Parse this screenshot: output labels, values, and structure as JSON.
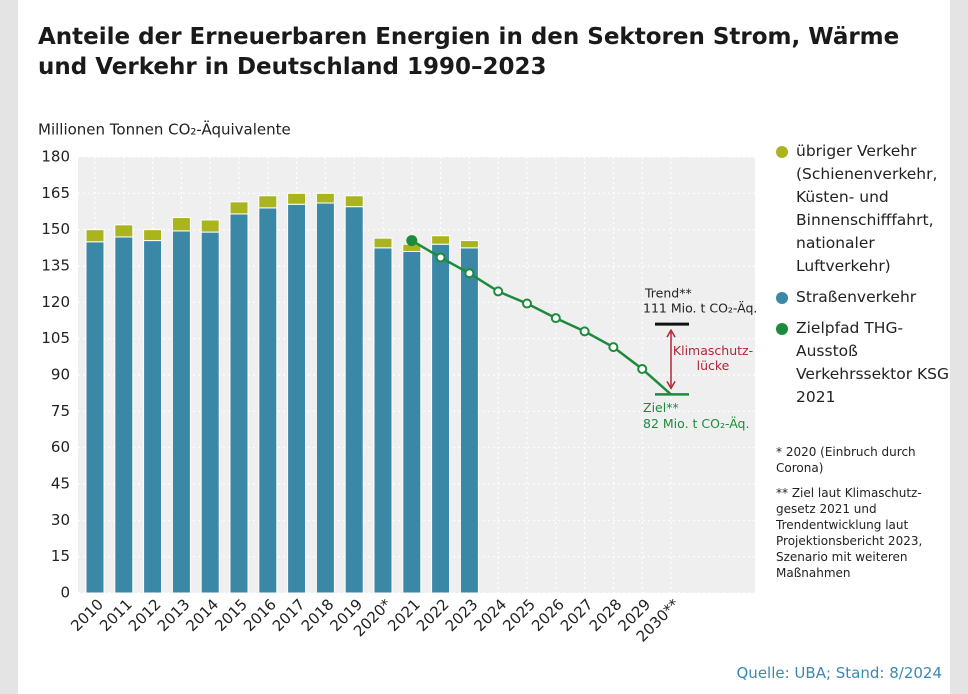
{
  "chart_data": {
    "type": "bar",
    "title": "Anteile der Erneuerbaren Energien in den Sektoren Strom, Wärme und Verkehr in Deutschland 1990–2023",
    "y_label": "Millionen Tonnen CO₂-Äquivalente",
    "categories": [
      "2010",
      "2011",
      "2012",
      "2013",
      "2014",
      "2015",
      "2016",
      "2017",
      "2018",
      "2019",
      "2020*",
      "2021",
      "2022",
      "2023",
      "2024",
      "2025",
      "2026",
      "2027",
      "2028",
      "2029",
      "2030**"
    ],
    "series": [
      {
        "name": "übriger Verkehr (Schienenverkehr, Küsten- und Binnenschifffahrt, nationaler Luftverkehr)",
        "color": "#a9b41f",
        "type": "bar",
        "values": [
          5,
          5,
          4.5,
          5.5,
          5,
          5,
          5,
          4.5,
          4,
          4.5,
          4,
          3,
          3.5,
          3,
          null,
          null,
          null,
          null,
          null,
          null,
          null
        ]
      },
      {
        "name": "Straßenverkehr",
        "color": "#3a87a6",
        "type": "bar",
        "values": [
          145,
          147,
          145.5,
          149.5,
          149,
          156.5,
          159,
          160.5,
          161,
          159.5,
          142.5,
          141,
          144,
          142.5,
          null,
          null,
          null,
          null,
          null,
          null,
          null
        ]
      },
      {
        "name": "Zielpfad THG-Ausstoß Verkehrssektor KSG 2021",
        "color": "#1e8a3c",
        "type": "line",
        "values": [
          null,
          null,
          null,
          null,
          null,
          null,
          null,
          null,
          null,
          null,
          null,
          145.5,
          138.5,
          132,
          124.5,
          119.5,
          113.5,
          108,
          101.5,
          92.5,
          82
        ]
      }
    ],
    "ylim": [
      0,
      180
    ],
    "yticks": [
      0,
      15,
      30,
      45,
      60,
      75,
      90,
      105,
      120,
      135,
      150,
      165,
      180
    ],
    "grid": true,
    "trend": {
      "label": "Trend**",
      "text": "111 Mio. t CO₂-Äq.",
      "value": 111,
      "color": "#111111"
    },
    "target": {
      "label": "Ziel**",
      "text": "82 Mio. t CO₂-Äq.",
      "value": 82,
      "color": "#1e8a3c"
    },
    "gap": {
      "lines": [
        "Klimaschutz-",
        "lücke"
      ],
      "color": "#b0263a"
    },
    "footnotes": [
      "* 2020 (Einbruch durch Corona)",
      "** Ziel laut Klimaschutz­gesetz 2021 und Trendentwicklung laut Projektionsbericht 2023, Szenario mit weiteren Maßnahmen"
    ],
    "source": "Quelle: UBA; Stand: 8/2024"
  }
}
